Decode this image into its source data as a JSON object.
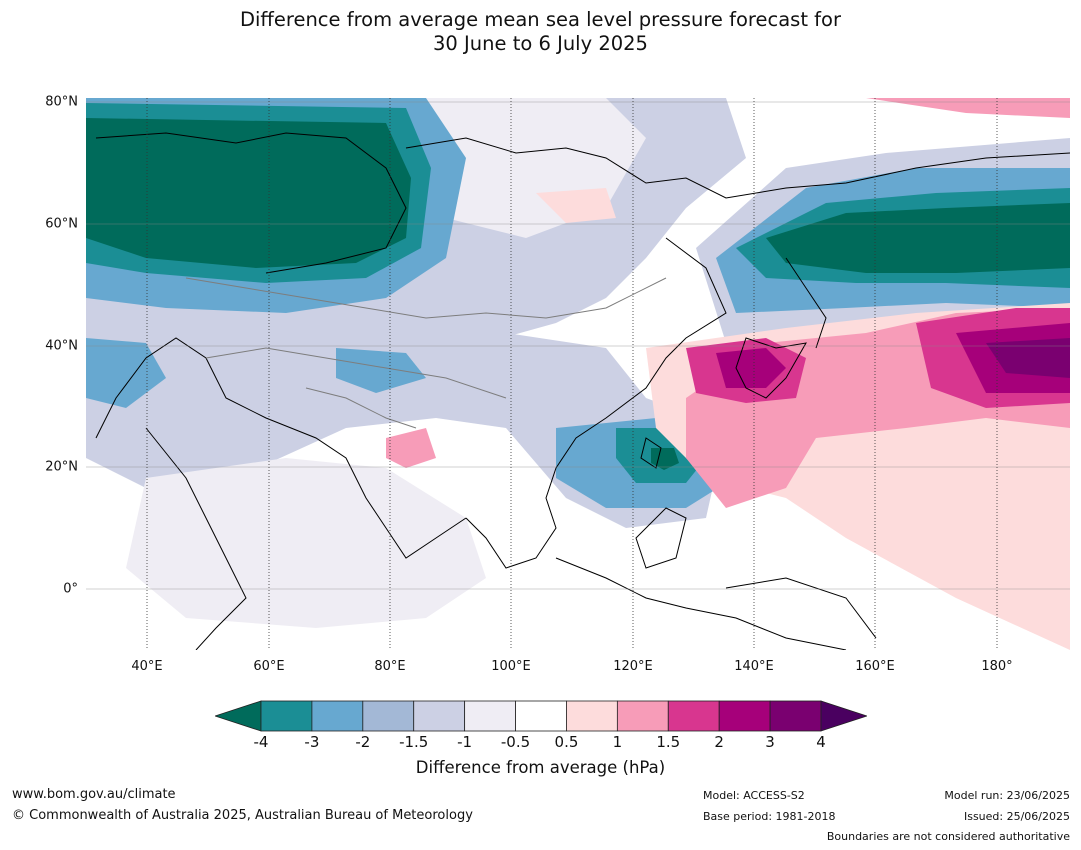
{
  "title_line1": "Difference from average mean sea level pressure forecast for",
  "title_line2": "30 June to 6 July 2025",
  "lat_labels": [
    "80°N",
    "60°N",
    "40°N",
    "20°N",
    "0°"
  ],
  "lon_labels": [
    "40°E",
    "60°E",
    "80°E",
    "100°E",
    "120°E",
    "140°E",
    "160°E",
    "180°"
  ],
  "colorbar": {
    "ticks": [
      "-4",
      "-3",
      "-2",
      "-1.5",
      "-1",
      "-0.5",
      "0.5",
      "1",
      "1.5",
      "2",
      "3",
      "4"
    ],
    "colors": [
      "#006b5b",
      "#1b8e95",
      "#67a8d0",
      "#a3b8d6",
      "#ccd0e4",
      "#efedf4",
      "#ffffff",
      "#fddcdc",
      "#f79cb8",
      "#d8368f",
      "#a6007a",
      "#7a0070",
      "#4a0060"
    ],
    "label": "Difference from average (hPa)"
  },
  "footer": {
    "website": "www.bom.gov.au/climate",
    "copyright": "© Commonwealth of Australia 2025, Australian Bureau of Meteorology",
    "model": "Model: ACCESS-S2",
    "base_period": "Base period: 1981-2018",
    "model_run": "Model run: 23/06/2025",
    "issued": "Issued: 25/06/2025",
    "disclaimer": "Boundaries are not considered authoritative"
  }
}
